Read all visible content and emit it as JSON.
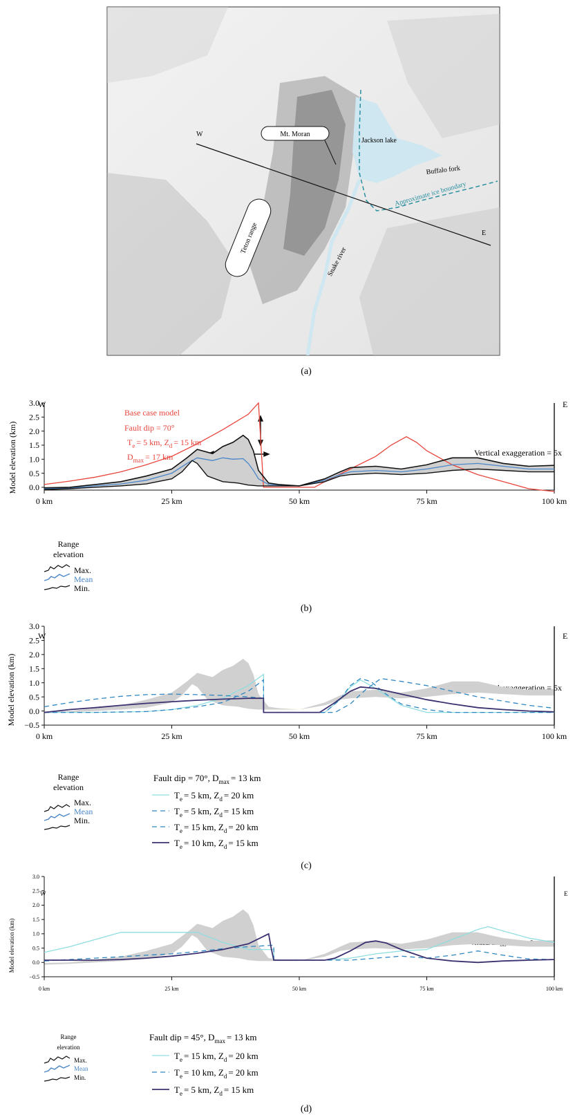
{
  "colors": {
    "red": "#e8453c",
    "mean": "#4a86c8",
    "light": "#8fdde0",
    "dashed": "#2e86c1",
    "dark": "#3b3170",
    "shade": "#d0d0d0",
    "ice": "#2a8fa0",
    "lake": "#cfe7f0"
  },
  "map": {
    "label_w": "W",
    "label_e": "E",
    "mt_moran": "Mt. Moran",
    "jackson_lake": "Jackson lake",
    "buffalo_fork": "Buffalo fork",
    "ice_boundary": "Approximate ice boundary",
    "teton_range": "Teton range",
    "snake_river": "Snake river"
  },
  "panel_labels": {
    "a": "(a)",
    "b": "(b)",
    "c": "(c)",
    "d": "(d)"
  },
  "common": {
    "west": "W",
    "east": "E",
    "ylabel": "Model elevation (km)",
    "vert_exag": "Vertical exaggeration = 5x",
    "range_title_1": "Range",
    "range_title_2": "elevation",
    "legend_max": "Max.",
    "legend_mean": "Mean",
    "legend_min": "Min."
  },
  "chart_data": [
    {
      "panel": "b",
      "type": "line",
      "xlabel": "",
      "ylabel": "Model elevation (km)",
      "xticks": [
        "0 km",
        "25 km",
        "50 km",
        "75 km",
        "100 km"
      ],
      "yticks": [
        "0.0",
        "0.5",
        "1.0",
        "1.5",
        "2.0",
        "2.5",
        "3.0"
      ],
      "xlim": [
        0,
        100
      ],
      "ylim": [
        -0.1,
        3.0
      ],
      "annotations": [
        "Base case model",
        "Fault dip = 70°",
        "T",
        "e",
        "= 5 km, Z",
        "d",
        "= 15 km",
        "D",
        "max",
        "= 17 km"
      ],
      "series": [
        {
          "name": "Max.",
          "x": [
            0,
            5,
            10,
            15,
            20,
            25,
            28,
            30,
            33,
            35,
            37,
            39,
            40,
            41,
            42,
            44,
            46,
            50,
            55,
            58,
            60,
            65,
            70,
            75,
            80,
            85,
            90,
            95,
            100
          ],
          "y": [
            -0.02,
            0.0,
            0.1,
            0.2,
            0.4,
            0.65,
            1.05,
            1.35,
            1.2,
            1.45,
            1.6,
            1.85,
            1.7,
            1.3,
            0.6,
            0.15,
            0.1,
            0.05,
            0.3,
            0.55,
            0.7,
            0.75,
            0.65,
            0.8,
            1.05,
            1.05,
            0.85,
            0.75,
            0.78
          ]
        },
        {
          "name": "Mean",
          "x": [
            0,
            5,
            10,
            15,
            20,
            25,
            28,
            30,
            33,
            35,
            37,
            39,
            40,
            41,
            42,
            44,
            46,
            50,
            55,
            58,
            60,
            65,
            70,
            75,
            80,
            85,
            90,
            95,
            100
          ],
          "y": [
            -0.05,
            -0.03,
            0.05,
            0.12,
            0.25,
            0.5,
            0.85,
            1.05,
            0.95,
            1.05,
            1.0,
            1.02,
            0.85,
            0.6,
            0.3,
            0.1,
            0.08,
            0.05,
            0.25,
            0.45,
            0.55,
            0.6,
            0.55,
            0.65,
            0.8,
            0.85,
            0.75,
            0.65,
            0.65
          ]
        },
        {
          "name": "Min.",
          "x": [
            0,
            5,
            10,
            15,
            20,
            25,
            27,
            29,
            30,
            32,
            35,
            38,
            40,
            42,
            44,
            46,
            50,
            55,
            58,
            60,
            65,
            70,
            75,
            80,
            85,
            90,
            95,
            100
          ],
          "y": [
            -0.08,
            -0.05,
            0.0,
            0.05,
            0.12,
            0.3,
            0.55,
            0.95,
            0.85,
            0.4,
            0.2,
            0.15,
            0.08,
            0.05,
            0.05,
            0.05,
            0.05,
            0.2,
            0.4,
            0.45,
            0.5,
            0.45,
            0.5,
            0.6,
            0.65,
            0.6,
            0.55,
            0.55
          ]
        },
        {
          "x": [
            0,
            5,
            10,
            15,
            20,
            25,
            30,
            35,
            40,
            42,
            43,
            50,
            53,
            55,
            60,
            65,
            68,
            70,
            71,
            73,
            75,
            80,
            85,
            90,
            95,
            100
          ],
          "y": [
            0.1,
            0.22,
            0.36,
            0.55,
            0.8,
            1.1,
            1.55,
            2.05,
            2.6,
            3.0,
            0.0,
            0.0,
            0.0,
            0.2,
            0.65,
            1.1,
            1.5,
            1.7,
            1.8,
            1.6,
            1.3,
            0.8,
            0.45,
            0.2,
            -0.05,
            -0.15
          ]
        }
      ]
    },
    {
      "panel": "c",
      "type": "line",
      "xlabel": "",
      "ylabel": "Model elevation (km)",
      "xticks": [
        "0 km",
        "25 km",
        "50 km",
        "75 km",
        "100 km"
      ],
      "yticks": [
        "−0.5",
        "0.0",
        "0.5",
        "1.0",
        "1.5",
        "2.0",
        "2.5",
        "3.0"
      ],
      "xlim": [
        0,
        100
      ],
      "ylim": [
        -0.5,
        3.0
      ],
      "legend_title": [
        "Fault dip = 70°, D",
        "max",
        "= 13 km"
      ],
      "series": [
        {
          "legend": [
            "T",
            "e",
            "= 5 km, Z",
            "d",
            "= 20 km"
          ],
          "x": [
            0,
            10,
            20,
            25,
            30,
            35,
            40,
            43,
            43.01,
            50,
            55,
            58,
            60,
            62,
            65,
            70,
            75,
            80,
            90,
            100
          ],
          "y": [
            -0.05,
            -0.05,
            -0.02,
            0.05,
            0.2,
            0.45,
            0.9,
            1.3,
            -0.05,
            -0.05,
            -0.05,
            0.4,
            0.85,
            1.1,
            0.8,
            0.2,
            -0.05,
            -0.05,
            -0.05,
            -0.05
          ]
        },
        {
          "legend": [
            "T",
            "e",
            "= 5 km, Z",
            "d",
            "= 15 km"
          ],
          "x": [
            0,
            10,
            20,
            25,
            30,
            35,
            40,
            43,
            43.01,
            50,
            55,
            58,
            60,
            62,
            64,
            67,
            70,
            75,
            80,
            90,
            100
          ],
          "y": [
            -0.05,
            -0.05,
            -0.02,
            0.05,
            0.15,
            0.3,
            0.7,
            1.1,
            -0.05,
            -0.05,
            -0.05,
            0.4,
            0.9,
            1.15,
            1.05,
            0.6,
            0.25,
            0.05,
            -0.05,
            -0.05,
            -0.05
          ]
        },
        {
          "legend": [
            "T",
            "e",
            "= 15 km, Z",
            "d",
            "= 20 km"
          ],
          "x": [
            0,
            5,
            10,
            15,
            20,
            25,
            30,
            35,
            40,
            43,
            43.01,
            50,
            55,
            57,
            60,
            63,
            66,
            70,
            75,
            80,
            85,
            90,
            95,
            100
          ],
          "y": [
            0.15,
            0.3,
            0.42,
            0.52,
            0.58,
            0.6,
            0.58,
            0.55,
            0.5,
            0.45,
            -0.05,
            -0.05,
            -0.05,
            -0.05,
            0.25,
            0.75,
            1.15,
            1.05,
            0.9,
            0.7,
            0.5,
            0.35,
            0.2,
            0.1
          ]
        },
        {
          "legend": [
            "T",
            "e",
            "= 10 km, Z",
            "d",
            "= 15 km"
          ],
          "x": [
            0,
            5,
            10,
            15,
            20,
            25,
            30,
            35,
            40,
            43,
            43.01,
            50,
            54,
            57,
            60,
            62,
            65,
            70,
            75,
            80,
            85,
            90,
            95,
            100
          ],
          "y": [
            -0.05,
            0.05,
            0.12,
            0.2,
            0.27,
            0.33,
            0.38,
            0.42,
            0.45,
            0.45,
            -0.05,
            -0.05,
            -0.05,
            0.3,
            0.7,
            0.85,
            0.8,
            0.6,
            0.4,
            0.25,
            0.12,
            0.05,
            0.0,
            -0.03
          ]
        }
      ]
    },
    {
      "panel": "d",
      "type": "line",
      "xlabel": "",
      "ylabel": "Model elevation (km)",
      "xticks": [
        "0 km",
        "25 km",
        "50 km",
        "75 km",
        "100 km"
      ],
      "yticks": [
        "−0.5",
        "0.0",
        "0.5",
        "1.0",
        "1.5",
        "2.0",
        "2.5",
        "3.0"
      ],
      "xlim": [
        0,
        100
      ],
      "ylim": [
        -0.5,
        3.0
      ],
      "legend_title": [
        "Fault dip = 45°, D",
        "max",
        "= 13 km"
      ],
      "series": [
        {
          "legend": [
            "T",
            "e",
            "= 15 km, Z",
            "d",
            "= 20 km"
          ],
          "x": [
            0,
            5,
            10,
            15,
            20,
            25,
            30,
            35,
            40,
            45,
            45.01,
            50,
            55,
            60,
            65,
            70,
            75,
            80,
            85,
            87,
            90,
            95,
            100
          ],
          "y": [
            0.35,
            0.55,
            0.8,
            1.05,
            1.05,
            1.05,
            1.05,
            0.7,
            0.45,
            0.45,
            0.08,
            0.08,
            0.08,
            0.15,
            0.3,
            0.4,
            0.45,
            0.8,
            1.15,
            1.25,
            1.1,
            0.85,
            0.7
          ]
        },
        {
          "legend": [
            "T",
            "e",
            "= 10 km, Z",
            "d",
            "= 20 km"
          ],
          "x": [
            0,
            5,
            10,
            15,
            20,
            25,
            30,
            35,
            40,
            45,
            45.01,
            50,
            55,
            60,
            65,
            70,
            75,
            80,
            85,
            90,
            95,
            100
          ],
          "y": [
            0.05,
            0.1,
            0.15,
            0.2,
            0.25,
            0.3,
            0.38,
            0.48,
            0.55,
            0.6,
            0.08,
            0.08,
            0.08,
            0.08,
            0.15,
            0.22,
            0.15,
            0.25,
            0.4,
            0.25,
            0.12,
            0.1
          ]
        },
        {
          "legend": [
            "T",
            "e",
            "= 5 km, Z",
            "d",
            "= 15 km"
          ],
          "x": [
            0,
            5,
            10,
            15,
            20,
            25,
            30,
            35,
            40,
            44,
            44.5,
            45,
            50,
            55,
            57,
            60,
            63,
            65,
            67,
            70,
            75,
            80,
            85,
            90,
            95,
            100
          ],
          "y": [
            0.08,
            0.08,
            0.08,
            0.1,
            0.15,
            0.22,
            0.32,
            0.45,
            0.65,
            1.0,
            0.5,
            0.08,
            0.08,
            0.08,
            0.15,
            0.4,
            0.7,
            0.75,
            0.68,
            0.45,
            0.15,
            0.05,
            0.0,
            0.05,
            0.08,
            0.1
          ]
        }
      ]
    }
  ]
}
